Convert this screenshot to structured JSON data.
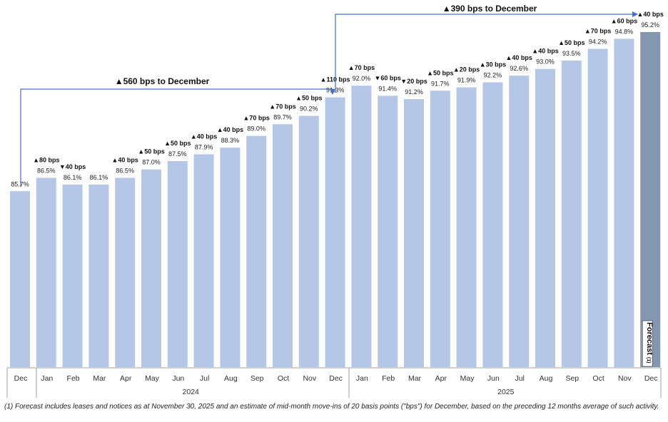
{
  "chart_data": {
    "type": "bar",
    "categories": [
      "Dec",
      "Jan",
      "Feb",
      "Mar",
      "Apr",
      "May",
      "Jun",
      "Jul",
      "Aug",
      "Sep",
      "Oct",
      "Nov",
      "Dec",
      "Jan",
      "Feb",
      "Mar",
      "Apr",
      "May",
      "Jun",
      "Jul",
      "Aug",
      "Sep",
      "Oct",
      "Nov",
      "Dec"
    ],
    "years": [
      {
        "label": "2024",
        "from": 1,
        "to": 12
      },
      {
        "label": "2025",
        "from": 13,
        "to": 24
      }
    ],
    "values": [
      85.7,
      86.5,
      86.1,
      86.1,
      86.5,
      87.0,
      87.5,
      87.9,
      88.3,
      89.0,
      89.7,
      90.2,
      91.3,
      92.0,
      91.4,
      91.2,
      91.7,
      91.9,
      92.2,
      92.6,
      93.0,
      93.5,
      94.2,
      94.8,
      95.2
    ],
    "value_labels": [
      "85.7%",
      "86.5%",
      "86.1%",
      "86.1%",
      "86.5%",
      "87.0%",
      "87.5%",
      "87.9%",
      "88.3%",
      "89.0%",
      "89.7%",
      "90.2%",
      "91.3%",
      "92.0%",
      "91.4%",
      "91.2%",
      "91.7%",
      "91.9%",
      "92.2%",
      "92.6%",
      "93.0%",
      "93.5%",
      "94.2%",
      "94.8%",
      "95.2%"
    ],
    "change_labels": [
      "",
      "▲80 bps",
      "▼40 bps",
      "",
      "▲40 bps",
      "▲50 bps",
      "▲50 bps",
      "▲40 bps",
      "▲40 bps",
      "▲70 bps",
      "▲70 bps",
      "▲50 bps",
      "▲110 bps",
      "▲70 bps",
      "▼60 bps",
      "▼20 bps",
      "▲50 bps",
      "▲20 bps",
      "▲30 bps",
      "▲40 bps",
      "▲40 bps",
      "▲50 bps",
      "▲70 bps",
      "▲60 bps",
      "▲40 bps"
    ],
    "forecast_index": 24,
    "forecast_label": "Forecast",
    "forecast_note": "(1)",
    "annotations": [
      "▲560 bps to December",
      "▲390 bps to December"
    ],
    "ylim": [
      75.2,
      95.2
    ],
    "grid": false,
    "colors": {
      "bar": "#b4c7e7",
      "forecast": "#8497b0",
      "arrow": "#4472c4"
    }
  },
  "footnote": "(1) Forecast includes leases and notices as at November 30, 2025 and an estimate of mid-month move-ins of 20 basis points (\"bps\") for December, based on the preceding 12 months average of such activity."
}
